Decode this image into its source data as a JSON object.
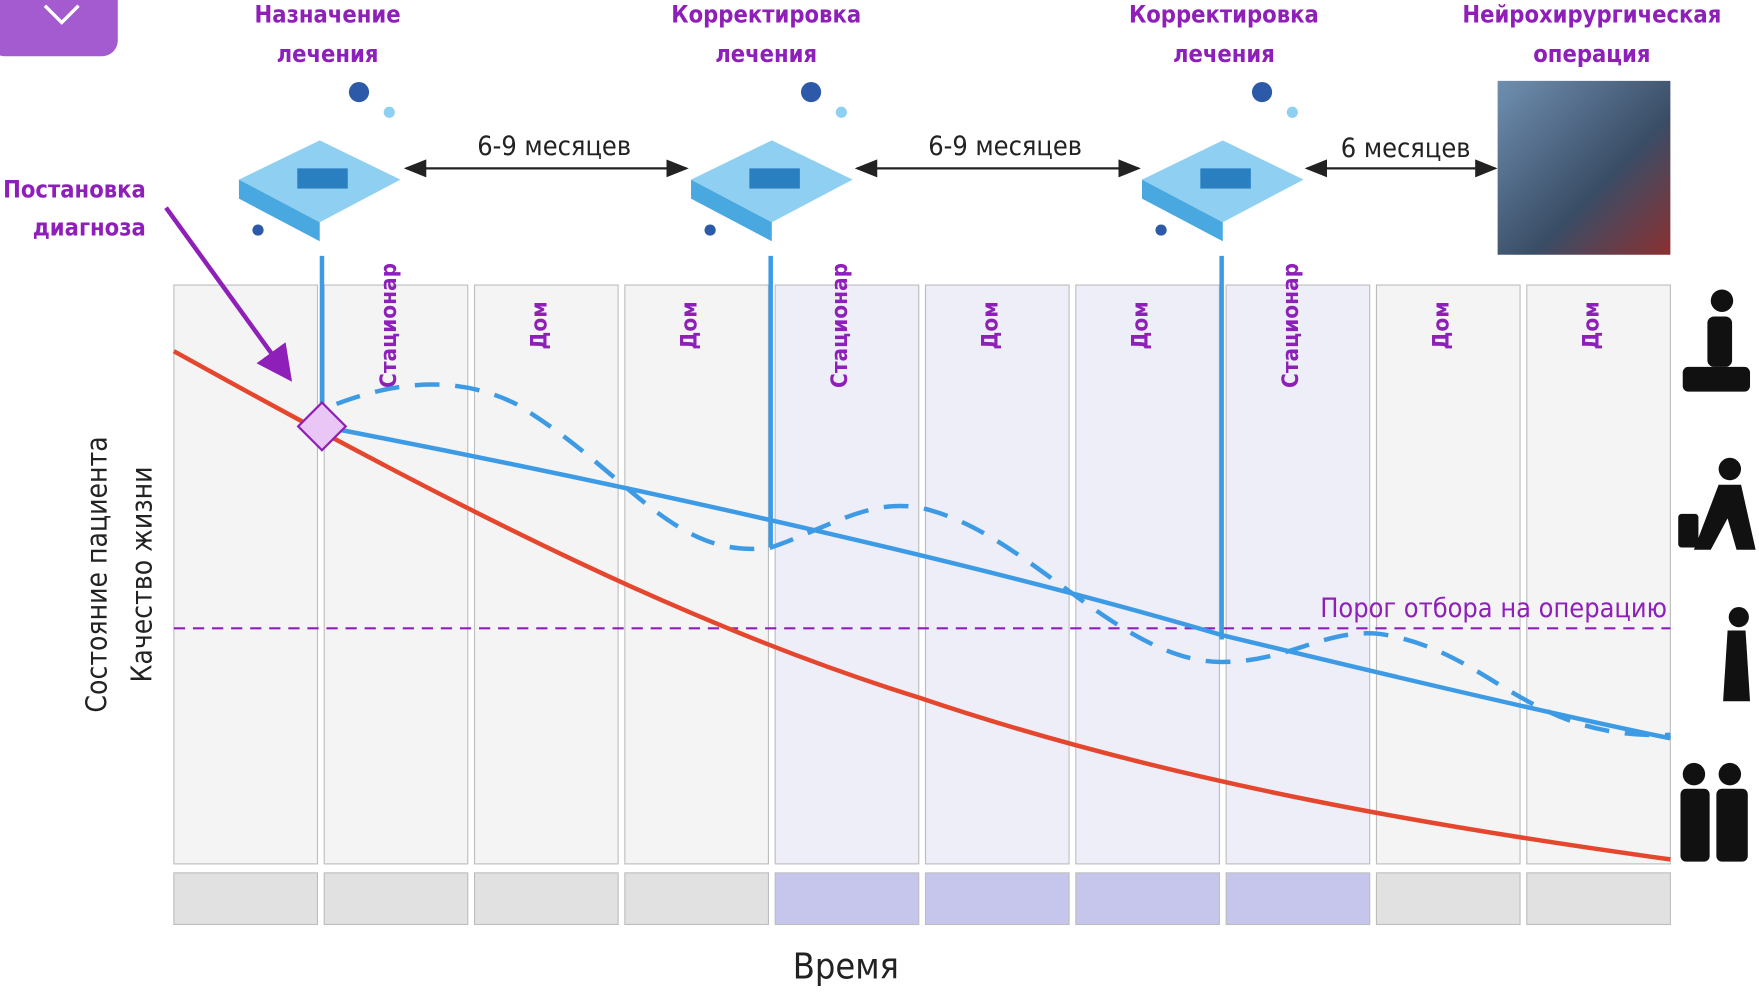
{
  "milestones": [
    {
      "lines": [
        "Назначение",
        "лечения"
      ]
    },
    {
      "lines": [
        "Корректировка",
        "лечения"
      ]
    },
    {
      "lines": [
        "Корректировка",
        "лечения"
      ]
    },
    {
      "lines": [
        "Нейрохирургическая",
        "операция"
      ]
    }
  ],
  "intervals": [
    "6-9 месяцев",
    "6-9 месяцев",
    "6 месяцев"
  ],
  "column_labels": [
    "Стационар",
    "Дом",
    "Дом",
    "Стационар",
    "Дом",
    "Дом",
    "Стационар",
    "Дом",
    "Дом"
  ],
  "diagnosis": [
    "Постановка",
    "диагноза"
  ],
  "threshold": "Порог отбора на операцию",
  "y_axis": [
    "Состояние пациента",
    "Качество жизни"
  ],
  "x_axis": "Время"
}
